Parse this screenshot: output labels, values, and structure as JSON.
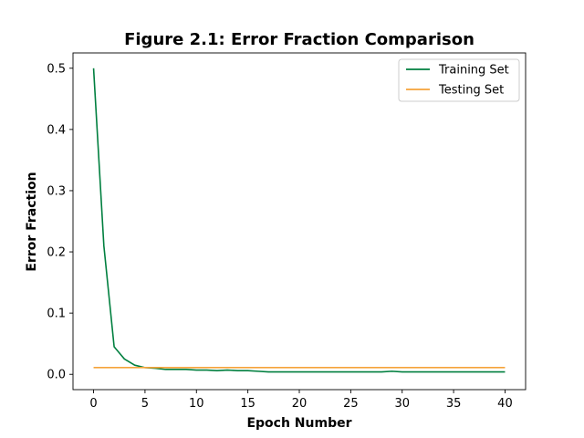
{
  "chart_data": {
    "type": "line",
    "title": "Figure 2.1: Error Fraction Comparison",
    "xlabel": "Epoch Number",
    "ylabel": "Error Fraction",
    "xlim": [
      -2,
      42
    ],
    "ylim": [
      -0.025,
      0.525
    ],
    "xticks": [
      0,
      5,
      10,
      15,
      20,
      25,
      30,
      35,
      40
    ],
    "yticks": [
      0.0,
      0.1,
      0.2,
      0.3,
      0.4,
      0.5
    ],
    "xtick_labels": [
      "0",
      "5",
      "10",
      "15",
      "20",
      "25",
      "30",
      "35",
      "40"
    ],
    "ytick_labels": [
      "0.0",
      "0.1",
      "0.2",
      "0.3",
      "0.4",
      "0.5"
    ],
    "grid": false,
    "legend_position": "top-right",
    "x": [
      0,
      1,
      2,
      3,
      4,
      5,
      6,
      7,
      8,
      9,
      10,
      11,
      12,
      13,
      14,
      15,
      16,
      17,
      18,
      19,
      20,
      21,
      22,
      23,
      24,
      25,
      26,
      27,
      28,
      29,
      30,
      31,
      32,
      33,
      34,
      35,
      36,
      37,
      38,
      39,
      40
    ],
    "series": [
      {
        "name": "Training Set",
        "color": "#007f3f",
        "values": [
          0.5,
          0.21,
          0.045,
          0.025,
          0.015,
          0.011,
          0.01,
          0.008,
          0.008,
          0.008,
          0.007,
          0.007,
          0.006,
          0.007,
          0.006,
          0.006,
          0.005,
          0.004,
          0.004,
          0.004,
          0.004,
          0.004,
          0.004,
          0.004,
          0.004,
          0.004,
          0.004,
          0.004,
          0.004,
          0.005,
          0.004,
          0.004,
          0.004,
          0.004,
          0.004,
          0.004,
          0.004,
          0.004,
          0.004,
          0.004,
          0.004
        ]
      },
      {
        "name": "Testing Set",
        "color": "#f5a33a",
        "values": [
          0.011,
          0.011,
          0.011,
          0.011,
          0.011,
          0.011,
          0.011,
          0.011,
          0.011,
          0.011,
          0.011,
          0.011,
          0.011,
          0.011,
          0.011,
          0.011,
          0.011,
          0.011,
          0.011,
          0.011,
          0.011,
          0.011,
          0.011,
          0.011,
          0.011,
          0.011,
          0.011,
          0.011,
          0.011,
          0.011,
          0.011,
          0.011,
          0.011,
          0.011,
          0.011,
          0.011,
          0.011,
          0.011,
          0.011,
          0.011,
          0.011
        ]
      }
    ]
  }
}
